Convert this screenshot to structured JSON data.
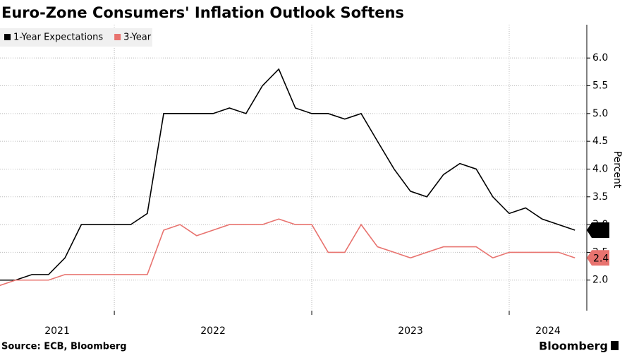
{
  "chart_data": {
    "type": "line",
    "title": "Euro-Zone Consumers' Inflation Outlook Softens",
    "y_label": "Percent",
    "source": "Source: ECB, Bloomberg",
    "brand": "Bloomberg",
    "x": [
      2021.417,
      2021.5,
      2021.583,
      2021.667,
      2021.75,
      2021.833,
      2021.917,
      2022,
      2022.083,
      2022.167,
      2022.25,
      2022.333,
      2022.417,
      2022.5,
      2022.583,
      2022.667,
      2022.75,
      2022.833,
      2022.917,
      2023,
      2023.083,
      2023.167,
      2023.25,
      2023.333,
      2023.417,
      2023.5,
      2023.583,
      2023.667,
      2023.75,
      2023.833,
      2023.917,
      2024,
      2024.083,
      2024.167,
      2024.25,
      2024.333
    ],
    "series": [
      {
        "name": "1-Year Expectations",
        "color": "#000000",
        "values": [
          2.0,
          2.0,
          2.1,
          2.1,
          2.4,
          3.0,
          3.0,
          3.0,
          3.0,
          3.2,
          5.0,
          5.0,
          5.0,
          5.0,
          5.1,
          5.0,
          5.5,
          5.8,
          5.1,
          5.0,
          5.0,
          4.9,
          5.0,
          4.5,
          4.0,
          3.6,
          3.5,
          3.9,
          4.1,
          4.0,
          3.5,
          3.2,
          3.3,
          3.1,
          3.0,
          2.9
        ]
      },
      {
        "name": "3-Year",
        "color": "#e8736f",
        "values": [
          1.9,
          2.0,
          2.0,
          2.0,
          2.1,
          2.1,
          2.1,
          2.1,
          2.1,
          2.1,
          2.9,
          3.0,
          2.8,
          2.9,
          3.0,
          3.0,
          3.0,
          3.1,
          3.0,
          3.0,
          2.5,
          2.5,
          3.0,
          2.6,
          2.5,
          2.4,
          2.5,
          2.6,
          2.6,
          2.6,
          2.4,
          2.5,
          2.5,
          2.5,
          2.5,
          2.4
        ]
      }
    ],
    "xlim": [
      2021.421,
      2024.393
    ],
    "xticks": [
      {
        "value": 2021,
        "label": "2021"
      },
      {
        "value": 2022,
        "label": "2022"
      },
      {
        "value": 2023,
        "label": "2023"
      },
      {
        "value": 2024,
        "label": "2024"
      }
    ],
    "ylim": [
      1.45,
      6.6
    ],
    "yticks": [
      {
        "value": 2,
        "label": "2.0"
      },
      2.5,
      {
        "value": 3,
        "label": "3.0"
      },
      3.5,
      {
        "value": 4,
        "label": "4.0"
      },
      4.5,
      {
        "value": 5,
        "label": "5.0"
      },
      5.5,
      {
        "value": 6,
        "label": "6.0"
      }
    ],
    "grid": true,
    "legend": "top-left"
  }
}
